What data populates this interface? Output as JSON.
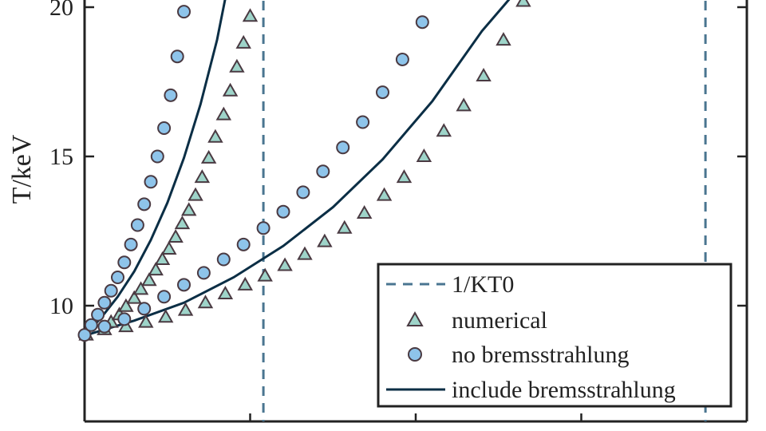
{
  "chart_data": {
    "type": "scatter",
    "ylabel": "T/keV",
    "xlabel": "",
    "xlim": [
      0,
      4
    ],
    "ylim": [
      6.8,
      20.3
    ],
    "y_ticks": [
      10,
      15,
      20
    ],
    "x_ticks": [
      1,
      2,
      3,
      4
    ],
    "grid": false,
    "legend_position": "bottom-right",
    "colors": {
      "dashed": "#4a7590",
      "triangle_fill": "#9ed4c9",
      "circle_fill": "#8ec4ea",
      "marker_edge": "#4a3a42",
      "curve": "#0b2e45",
      "axis": "#222222"
    },
    "series": [
      {
        "name": "1/KT0",
        "kind": "vline",
        "x": [
          1.08,
          3.75
        ]
      },
      {
        "name": "numerical",
        "kind": "triangle",
        "points": [
          [
            0.01,
            9.02
          ],
          [
            0.12,
            9.2
          ],
          [
            0.16,
            9.45
          ],
          [
            0.21,
            9.7
          ],
          [
            0.25,
            9.98
          ],
          [
            0.3,
            10.25
          ],
          [
            0.34,
            10.55
          ],
          [
            0.39,
            10.85
          ],
          [
            0.43,
            11.2
          ],
          [
            0.47,
            11.55
          ],
          [
            0.51,
            11.9
          ],
          [
            0.55,
            12.3
          ],
          [
            0.59,
            12.75
          ],
          [
            0.63,
            13.2
          ],
          [
            0.67,
            13.7
          ],
          [
            0.71,
            14.3
          ],
          [
            0.75,
            14.95
          ],
          [
            0.79,
            15.65
          ],
          [
            0.84,
            16.4
          ],
          [
            0.88,
            17.2
          ],
          [
            0.92,
            18.0
          ],
          [
            0.96,
            18.8
          ],
          [
            1.0,
            19.7
          ],
          [
            0.25,
            9.3
          ],
          [
            0.37,
            9.45
          ],
          [
            0.49,
            9.62
          ],
          [
            0.61,
            9.85
          ],
          [
            0.73,
            10.1
          ],
          [
            0.85,
            10.4
          ],
          [
            0.97,
            10.7
          ],
          [
            1.09,
            11.0
          ],
          [
            1.21,
            11.35
          ],
          [
            1.33,
            11.72
          ],
          [
            1.45,
            12.15
          ],
          [
            1.57,
            12.6
          ],
          [
            1.69,
            13.1
          ],
          [
            1.81,
            13.7
          ],
          [
            1.93,
            14.3
          ],
          [
            2.05,
            15.0
          ],
          [
            2.17,
            15.85
          ],
          [
            2.29,
            16.7
          ],
          [
            2.41,
            17.7
          ],
          [
            2.53,
            18.9
          ],
          [
            2.65,
            20.2
          ]
        ]
      },
      {
        "name": "no bremsstrahlung",
        "kind": "circle",
        "points": [
          [
            0.0,
            9.02
          ],
          [
            0.04,
            9.35
          ],
          [
            0.08,
            9.7
          ],
          [
            0.12,
            10.1
          ],
          [
            0.16,
            10.5
          ],
          [
            0.2,
            10.95
          ],
          [
            0.24,
            11.45
          ],
          [
            0.28,
            12.05
          ],
          [
            0.32,
            12.7
          ],
          [
            0.36,
            13.4
          ],
          [
            0.4,
            14.15
          ],
          [
            0.44,
            15.0
          ],
          [
            0.48,
            15.95
          ],
          [
            0.52,
            17.05
          ],
          [
            0.56,
            18.35
          ],
          [
            0.6,
            19.85
          ],
          [
            0.12,
            9.3
          ],
          [
            0.24,
            9.55
          ],
          [
            0.36,
            9.9
          ],
          [
            0.48,
            10.3
          ],
          [
            0.6,
            10.7
          ],
          [
            0.72,
            11.1
          ],
          [
            0.84,
            11.55
          ],
          [
            0.96,
            12.05
          ],
          [
            1.08,
            12.6
          ],
          [
            1.2,
            13.15
          ],
          [
            1.32,
            13.8
          ],
          [
            1.44,
            14.5
          ],
          [
            1.56,
            15.3
          ],
          [
            1.68,
            16.15
          ],
          [
            1.8,
            17.15
          ],
          [
            1.92,
            18.25
          ],
          [
            2.04,
            19.5
          ]
        ]
      },
      {
        "name": "include bremsstrahlung",
        "kind": "line",
        "curves": [
          [
            [
              0.0,
              9.0
            ],
            [
              0.1,
              9.6
            ],
            [
              0.2,
              10.3
            ],
            [
              0.3,
              11.15
            ],
            [
              0.4,
              12.2
            ],
            [
              0.5,
              13.45
            ],
            [
              0.6,
              14.95
            ],
            [
              0.7,
              16.75
            ],
            [
              0.8,
              18.9
            ],
            [
              0.85,
              20.3
            ]
          ],
          [
            [
              0.0,
              9.0
            ],
            [
              0.3,
              9.5
            ],
            [
              0.6,
              10.1
            ],
            [
              0.9,
              10.95
            ],
            [
              1.2,
              12.0
            ],
            [
              1.5,
              13.3
            ],
            [
              1.8,
              14.9
            ],
            [
              2.1,
              16.85
            ],
            [
              2.4,
              19.2
            ],
            [
              2.57,
              20.3
            ]
          ]
        ]
      }
    ]
  }
}
